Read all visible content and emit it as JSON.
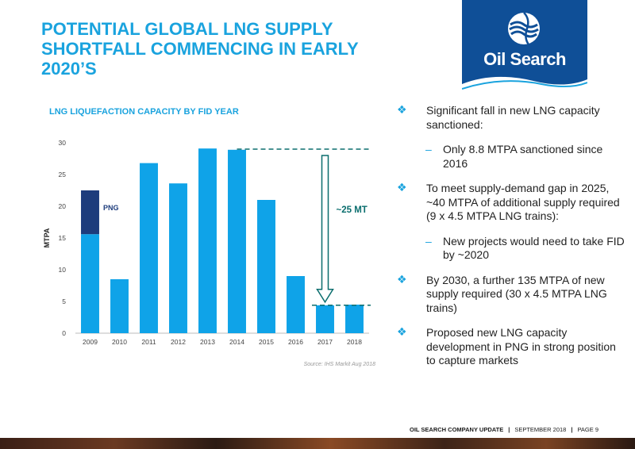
{
  "slide": {
    "title": "POTENTIAL GLOBAL LNG SUPPLY SHORTFALL COMMENCING IN EARLY 2020’S",
    "logo_text": "Oil Search",
    "chart_heading": "LNG LIQUEFACTION CAPACITY BY FID YEAR",
    "footer": {
      "company": "OIL SEARCH COMPANY UPDATE",
      "date": "SEPTEMBER 2018",
      "page": "PAGE 9"
    }
  },
  "bullets": [
    {
      "level": 1,
      "text": "Significant fall in new LNG capacity sanctioned:"
    },
    {
      "level": 2,
      "text": "Only 8.8 MTPA sanctioned since 2016"
    },
    {
      "level": 1,
      "text": "To meet supply-demand gap in 2025, ~40 MTPA of additional supply required (9 x 4.5 MTPA LNG trains):"
    },
    {
      "level": 2,
      "text": "New projects would need to take FID by ~2020"
    },
    {
      "level": 1,
      "text": "By 2030, a further 135 MTPA of new supply required (30 x 4.5 MTPA LNG trains)"
    },
    {
      "level": 1,
      "text": "Proposed new LNG capacity development in PNG in strong position to capture markets"
    }
  ],
  "chart_data": {
    "type": "bar",
    "title": "LNG LIQUEFACTION CAPACITY BY FID YEAR",
    "xlabel": "",
    "ylabel": "MTPA",
    "ylim": [
      0,
      30
    ],
    "yticks": [
      0,
      5,
      10,
      15,
      20,
      25,
      30
    ],
    "categories": [
      "2009",
      "2010",
      "2011",
      "2012",
      "2013",
      "2014",
      "2015",
      "2016",
      "2017",
      "2018"
    ],
    "series": [
      {
        "name": "",
        "color": "#0fa3e8",
        "values": [
          15.6,
          8.5,
          26.8,
          23.6,
          29.1,
          28.9,
          21.0,
          9.0,
          4.4,
          4.5
        ]
      },
      {
        "name": "PNG",
        "color": "#1d3c7c",
        "values": [
          6.9,
          0,
          0,
          0,
          0,
          0,
          0,
          0,
          0,
          0
        ]
      }
    ],
    "annotations": {
      "png_label": "PNG",
      "gap_label": "~25 MT",
      "upper_line_y": 29,
      "lower_line_y": 4.4
    },
    "source": "Source: IHS Markit Aug 2018",
    "grid": false,
    "colors": {
      "bar": "#0fa3e8",
      "png": "#1d3c7c",
      "annotation": "#0b6e6e"
    }
  }
}
